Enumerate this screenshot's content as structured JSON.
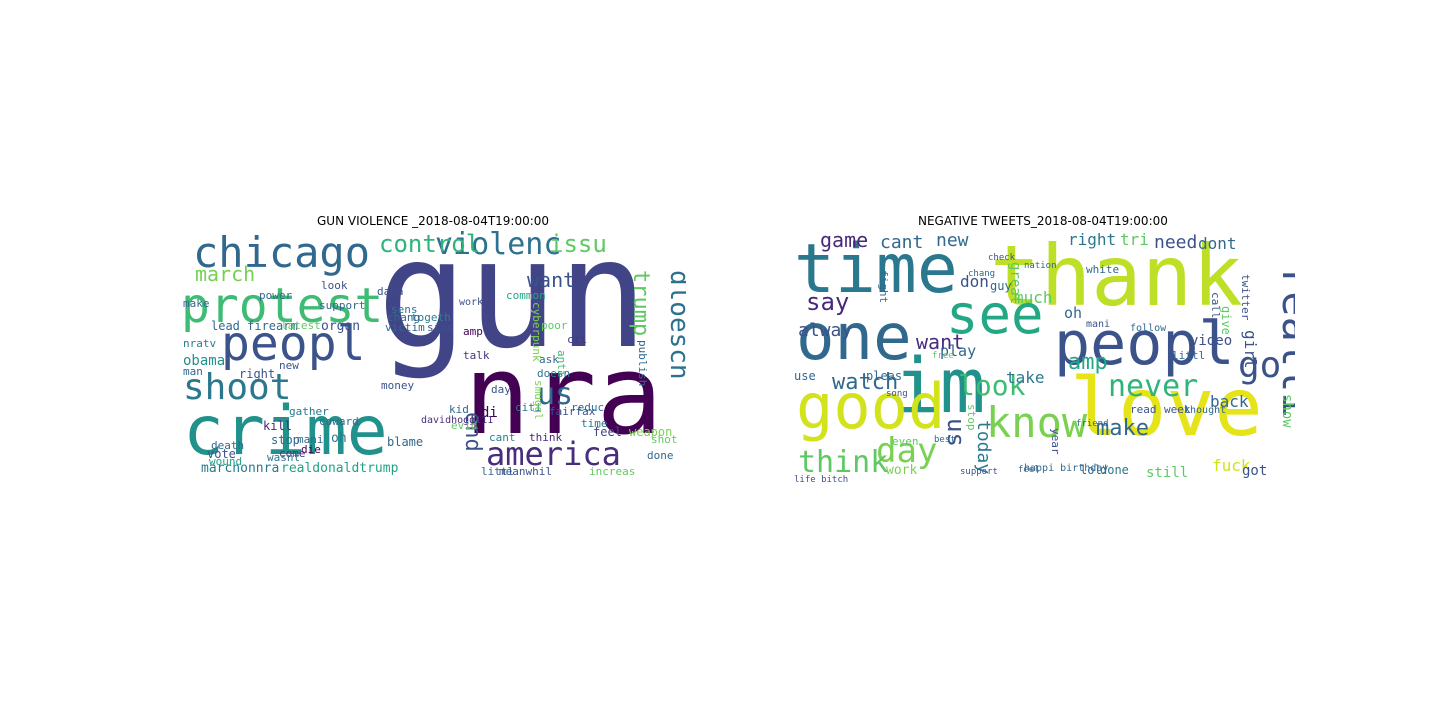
{
  "figure": {
    "left_title": "GUN VIOLENCE _2018-08-04T19:00:00",
    "right_title": "NEGATIVE TWEETS_2018-08-04T19:00:00"
  },
  "left_cloud": [
    {
      "w": "gun",
      "c": "#414487"
    },
    {
      "w": "nra",
      "c": "#440154"
    },
    {
      "w": "crime",
      "c": "#21918c"
    },
    {
      "w": "protest",
      "c": "#3fbc73"
    },
    {
      "w": "chicago",
      "c": "#31688e"
    },
    {
      "w": "peopl",
      "c": "#3b528b"
    },
    {
      "w": "shoot",
      "c": "#2a788e"
    },
    {
      "w": "america",
      "c": "#472d7b"
    },
    {
      "w": "violenc",
      "c": "#2c728e"
    },
    {
      "w": "control",
      "c": "#2fb47c"
    },
    {
      "w": "issu",
      "c": "#5ec962"
    },
    {
      "w": "us",
      "c": "#31688e"
    },
    {
      "w": "march",
      "c": "#75d054"
    },
    {
      "w": "want",
      "c": "#3b528b"
    },
    {
      "w": "trump",
      "c": "#5ec962"
    },
    {
      "w": "dloesch",
      "c": "#2c728e"
    },
    {
      "w": "end",
      "c": "#3b528b"
    },
    {
      "w": "obama",
      "c": "#21918c"
    },
    {
      "w": "marchonnra",
      "c": "#2a788e"
    },
    {
      "w": "realdonaldtrump",
      "c": "#20a386"
    },
    {
      "w": "kill",
      "c": "#482878"
    },
    {
      "w": "right",
      "c": "#3b528b"
    },
    {
      "w": "stop",
      "c": "#31688e"
    },
    {
      "w": "oh",
      "c": "#2a788e"
    },
    {
      "w": "vote",
      "c": "#3b528b"
    },
    {
      "w": "blame",
      "c": "#31688e"
    },
    {
      "w": "cant",
      "c": "#26828e"
    },
    {
      "w": "feel",
      "c": "#414487"
    },
    {
      "w": "weapon",
      "c": "#7ad151"
    },
    {
      "w": "think",
      "c": "#482878"
    },
    {
      "w": "citi",
      "c": "#2a788e"
    },
    {
      "w": "reduc",
      "c": "#2c728e"
    },
    {
      "w": "di",
      "c": "#440154"
    },
    {
      "w": "talk",
      "c": "#46327e"
    },
    {
      "w": "cri",
      "c": "#443983"
    },
    {
      "w": "amp",
      "c": "#440154"
    },
    {
      "w": "lead firearm",
      "c": "#31688e"
    },
    {
      "w": "latest",
      "c": "#5ec962"
    },
    {
      "w": "organ",
      "c": "#3b528b"
    },
    {
      "w": "victim",
      "c": "#31688e"
    },
    {
      "w": "sens",
      "c": "#2a788e"
    },
    {
      "w": "togeth",
      "c": "#26828e"
    },
    {
      "w": "sinc",
      "c": "#3b528b"
    },
    {
      "w": "common",
      "c": "#22a884"
    },
    {
      "w": "anti",
      "c": "#3fbc73"
    },
    {
      "w": "poor",
      "c": "#5ec962"
    },
    {
      "w": "work",
      "c": "#3b528b"
    },
    {
      "w": "cyberpunk",
      "c": "#7ad151"
    },
    {
      "w": "davidhogg111",
      "c": "#472d7b"
    },
    {
      "w": "gather",
      "c": "#2a788e"
    },
    {
      "w": "coward",
      "c": "#31688e"
    },
    {
      "w": "die",
      "c": "#440154"
    },
    {
      "w": "come",
      "c": "#443983"
    },
    {
      "w": "mani",
      "c": "#31688e"
    },
    {
      "w": "money",
      "c": "#3b528b"
    },
    {
      "w": "nratv",
      "c": "#2a788e"
    },
    {
      "w": "man",
      "c": "#31688e"
    },
    {
      "w": "death",
      "c": "#31688e"
    },
    {
      "w": "wound",
      "c": "#20a386"
    },
    {
      "w": "wasnt",
      "c": "#2a788e"
    },
    {
      "w": "littl",
      "c": "#31688e"
    },
    {
      "w": "meanwhil",
      "c": "#3b528b"
    },
    {
      "w": "increas",
      "c": "#5ec962"
    },
    {
      "w": "done",
      "c": "#31688e"
    },
    {
      "w": "shot",
      "c": "#5ec962"
    },
    {
      "w": "publish",
      "c": "#31688e"
    },
    {
      "w": "day",
      "c": "#3b528b"
    },
    {
      "w": "ask",
      "c": "#31688e"
    },
    {
      "w": "doesn",
      "c": "#2a788e"
    },
    {
      "w": "smuggl",
      "c": "#7ad151"
    },
    {
      "w": "fairfax",
      "c": "#3b528b"
    },
    {
      "w": "time",
      "c": "#2a788e"
    },
    {
      "w": "power",
      "c": "#31688e"
    },
    {
      "w": "look",
      "c": "#3b528b"
    },
    {
      "w": "support",
      "c": "#31688e"
    },
    {
      "w": "make",
      "c": "#31688e"
    },
    {
      "w": "dana",
      "c": "#3b528b"
    },
    {
      "w": "chang",
      "c": "#31688e"
    },
    {
      "w": "new",
      "c": "#3b528b"
    },
    {
      "w": "kid",
      "c": "#31688e"
    },
    {
      "w": "evid",
      "c": "#5ec962"
    }
  ],
  "right_cloud": [
    {
      "w": "thank",
      "c": "#bddf26"
    },
    {
      "w": "time",
      "c": "#2a788e"
    },
    {
      "w": "one",
      "c": "#31688e"
    },
    {
      "w": "love",
      "c": "#e5e419"
    },
    {
      "w": "im",
      "c": "#21918c"
    },
    {
      "w": "good",
      "c": "#d2e21b"
    },
    {
      "w": "peopl",
      "c": "#3b528b"
    },
    {
      "w": "see",
      "c": "#22a884"
    },
    {
      "w": "know",
      "c": "#7ad151"
    },
    {
      "w": "day",
      "c": "#7ad151"
    },
    {
      "w": "go",
      "c": "#3b528b"
    },
    {
      "w": "realli",
      "c": "#3b528b"
    },
    {
      "w": "never",
      "c": "#2fb47c"
    },
    {
      "w": "look",
      "c": "#3fbc73"
    },
    {
      "w": "think",
      "c": "#5ec962"
    },
    {
      "w": "say",
      "c": "#482878"
    },
    {
      "w": "watch",
      "c": "#31688e"
    },
    {
      "w": "us",
      "c": "#3b528b"
    },
    {
      "w": "make",
      "c": "#31688e"
    },
    {
      "w": "amp",
      "c": "#22a884"
    },
    {
      "w": "fuck",
      "c": "#d2e21b"
    },
    {
      "w": "today",
      "c": "#2a788e"
    },
    {
      "w": "want",
      "c": "#472d7b"
    },
    {
      "w": "alway",
      "c": "#3b528b"
    },
    {
      "w": "game",
      "c": "#482878"
    },
    {
      "w": "cant",
      "c": "#31688e"
    },
    {
      "w": "new",
      "c": "#31688e"
    },
    {
      "w": "right",
      "c": "#2a788e"
    },
    {
      "w": "tri",
      "c": "#5ec962"
    },
    {
      "w": "need",
      "c": "#3b528b"
    },
    {
      "w": "dont",
      "c": "#31688e"
    },
    {
      "w": "play",
      "c": "#31688e"
    },
    {
      "w": "take",
      "c": "#2a788e"
    },
    {
      "w": "back",
      "c": "#31688e"
    },
    {
      "w": "show",
      "c": "#5ec962"
    },
    {
      "w": "girl",
      "c": "#3b528b"
    },
    {
      "w": "oh",
      "c": "#31688e"
    },
    {
      "w": "mani",
      "c": "#3b528b"
    },
    {
      "w": "follow",
      "c": "#31688e"
    },
    {
      "w": "video",
      "c": "#3b528b"
    },
    {
      "w": "littl",
      "c": "#31688e"
    },
    {
      "w": "week",
      "c": "#3b528b"
    },
    {
      "w": "thought",
      "c": "#31688e"
    },
    {
      "w": "read",
      "c": "#3b528b"
    },
    {
      "w": "lol",
      "c": "#31688e"
    },
    {
      "w": "done",
      "c": "#2a788e"
    },
    {
      "w": "still",
      "c": "#5ec962"
    },
    {
      "w": "got",
      "c": "#3b528b"
    },
    {
      "w": "stop",
      "c": "#5ec962"
    },
    {
      "w": "year",
      "c": "#3b528b"
    },
    {
      "w": "much",
      "c": "#5ec962"
    },
    {
      "w": "don",
      "c": "#3b528b"
    },
    {
      "w": "guy",
      "c": "#31688e"
    },
    {
      "w": "pleas",
      "c": "#31688e"
    },
    {
      "w": "use",
      "c": "#31688e"
    },
    {
      "w": "work",
      "c": "#7ad151"
    },
    {
      "w": "even",
      "c": "#5ec962"
    },
    {
      "w": "great",
      "c": "#5ec962"
    },
    {
      "w": "fight",
      "c": "#31688e"
    },
    {
      "w": "call",
      "c": "#3b528b"
    },
    {
      "w": "give",
      "c": "#5ec962"
    },
    {
      "w": "white",
      "c": "#31688e"
    },
    {
      "w": "twitter",
      "c": "#3b528b"
    },
    {
      "w": "happi birthday",
      "c": "#31688e"
    },
    {
      "w": "life bitch",
      "c": "#3b528b"
    },
    {
      "w": "friend",
      "c": "#31688e"
    },
    {
      "w": "best",
      "c": "#31688e"
    },
    {
      "w": "support",
      "c": "#3b528b"
    },
    {
      "w": "feel",
      "c": "#31688e"
    },
    {
      "w": "free",
      "c": "#5ec962"
    },
    {
      "w": "song",
      "c": "#3b528b"
    },
    {
      "w": "chang",
      "c": "#31688e"
    },
    {
      "w": "check",
      "c": "#3b528b"
    },
    {
      "w": "nation",
      "c": "#31688e"
    },
    {
      "w": "cri",
      "c": "#31688e"
    }
  ]
}
